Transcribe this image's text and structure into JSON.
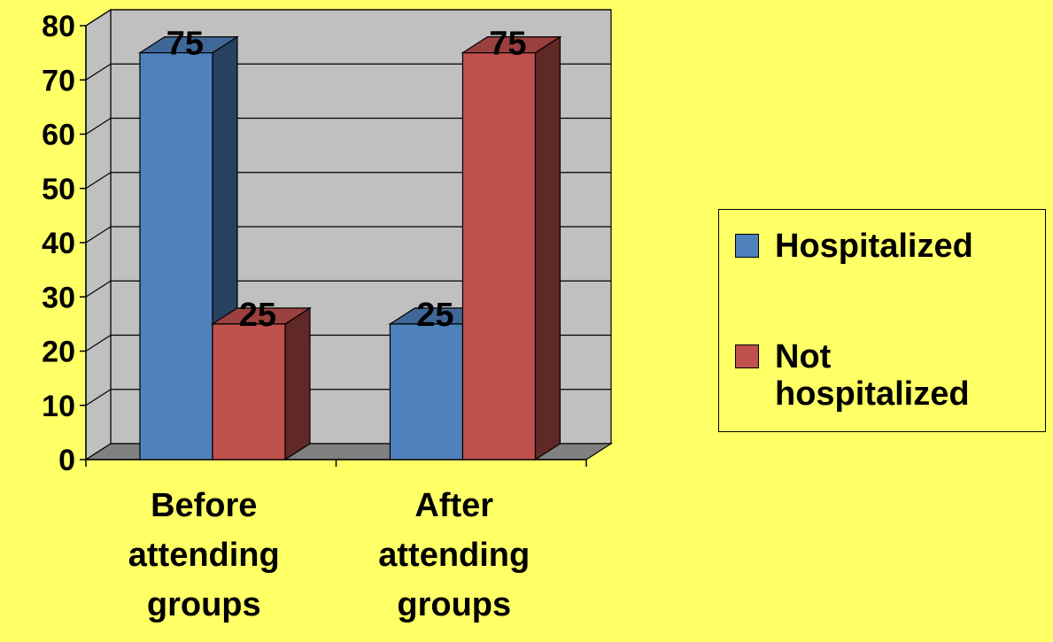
{
  "colors": {
    "background": "#FFFF66",
    "wall": "#C0C0C0",
    "floor": "#808080",
    "hospitalized": "#4F81BD",
    "not_hospitalized": "#C0504D"
  },
  "chart_data": {
    "type": "bar",
    "style": "3d-clustered",
    "title": "",
    "xlabel": "",
    "ylabel": "",
    "categories": [
      "Before attending groups",
      "After attending groups"
    ],
    "category_labels": [
      [
        "Before",
        "attending",
        "groups"
      ],
      [
        "After",
        "attending",
        "groups"
      ]
    ],
    "series": [
      {
        "name": "Hospitalized",
        "values": [
          75,
          25
        ],
        "color": "#4F81BD",
        "icon": "blue-square"
      },
      {
        "name": "Not hospitalized",
        "values": [
          25,
          75
        ],
        "color": "#C0504D",
        "icon": "red-square"
      }
    ],
    "y_ticks": [
      0,
      10,
      20,
      30,
      40,
      50,
      60,
      70,
      80
    ],
    "ylim": [
      0,
      80
    ],
    "grid": true,
    "data_labels": true,
    "legend": {
      "position": "right",
      "labels": [
        "Hospitalized",
        "Not\nhospitalized"
      ]
    }
  }
}
